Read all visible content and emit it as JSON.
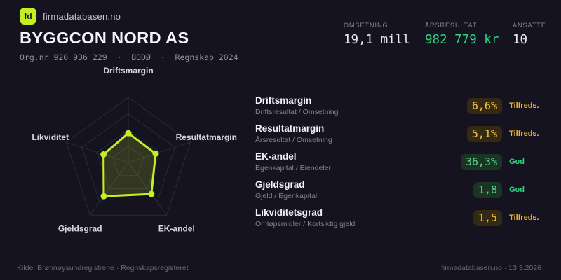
{
  "brand": {
    "logo_text": "fd",
    "site_name": "firmadatabasen.no"
  },
  "header": {
    "company": "BYGGCON NORD AS",
    "meta": "Org.nr 920 936 229  ·  BODØ  ·  Regnskap 2024",
    "stats": [
      {
        "label": "OMSETNING",
        "value": "19,1 mill",
        "value_color": "#eceaf2"
      },
      {
        "label": "ÅRSRESULTAT",
        "value": "982 779 kr",
        "value_color": "#30d27d"
      },
      {
        "label": "ANSATTE",
        "value": "10",
        "value_color": "#eceaf2"
      }
    ]
  },
  "chart_data": {
    "type": "radar",
    "axes": [
      "Driftsmargin",
      "Resultatmargin",
      "EK-andel",
      "Gjeldsgrad",
      "Likviditet"
    ],
    "values_normalized": [
      0.45,
      0.44,
      0.6,
      0.64,
      0.4
    ],
    "axis_metric_values": [
      "6,6%",
      "5,1%",
      "36,3%",
      "1,8",
      "1,5"
    ],
    "range": [
      0,
      1
    ],
    "rings": 4,
    "grid": true,
    "legend": false,
    "stroke": "#c3f022",
    "fill_opacity": 0.17
  },
  "metrics": [
    {
      "name": "Driftsmargin",
      "formula": "Driftsresultat / Omsetning",
      "value": "6,6%",
      "status": "Tilfreds.",
      "tone": "amber"
    },
    {
      "name": "Resultatmargin",
      "formula": "Årsresultat / Omsetning",
      "value": "5,1%",
      "status": "Tilfreds.",
      "tone": "amber"
    },
    {
      "name": "EK-andel",
      "formula": "Egenkapital / Eiendeler",
      "value": "36,3%",
      "status": "God",
      "tone": "green"
    },
    {
      "name": "Gjeldsgrad",
      "formula": "Gjeld / Egenkapital",
      "value": "1,8",
      "status": "God",
      "tone": "green"
    },
    {
      "name": "Likviditetsgrad",
      "formula": "Omløpsmidler / Kortsiktig gjeld",
      "value": "1,5",
      "status": "Tilfreds.",
      "tone": "amber"
    }
  ],
  "footer": {
    "source": "Kilde: Brønnøysundregistrene · Regnskapsregisteret",
    "site": "firmadatabasen.no · 13.3.2026"
  },
  "colors": {
    "background": "#161321",
    "accent": "#c3f022",
    "green": "#30d27d",
    "amber": "#f0b42f",
    "grid": "#2c2a37",
    "axis_label": "#d8d7e0"
  }
}
